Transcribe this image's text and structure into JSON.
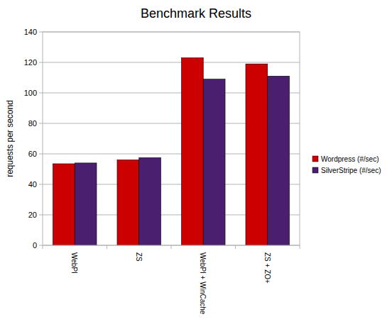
{
  "chart_data": {
    "type": "bar",
    "title": "Benchmark Results",
    "y_label": "requests per second",
    "categories": [
      "WebPI",
      "ZS",
      "WebPI + WinCache",
      "ZS + ZO+"
    ],
    "series": [
      {
        "name": "Wordpress (#/sec)",
        "color": "#cc0000",
        "values": [
          53.5,
          56,
          123,
          119
        ]
      },
      {
        "name": "SilverStripe (#/sec)",
        "color": "#4b1f6f",
        "values": [
          54,
          57.5,
          109,
          111
        ]
      }
    ],
    "ylim": [
      0,
      140
    ],
    "yticks": [
      0,
      20,
      40,
      60,
      80,
      100,
      120,
      140
    ],
    "grid": true,
    "legend": "right"
  }
}
